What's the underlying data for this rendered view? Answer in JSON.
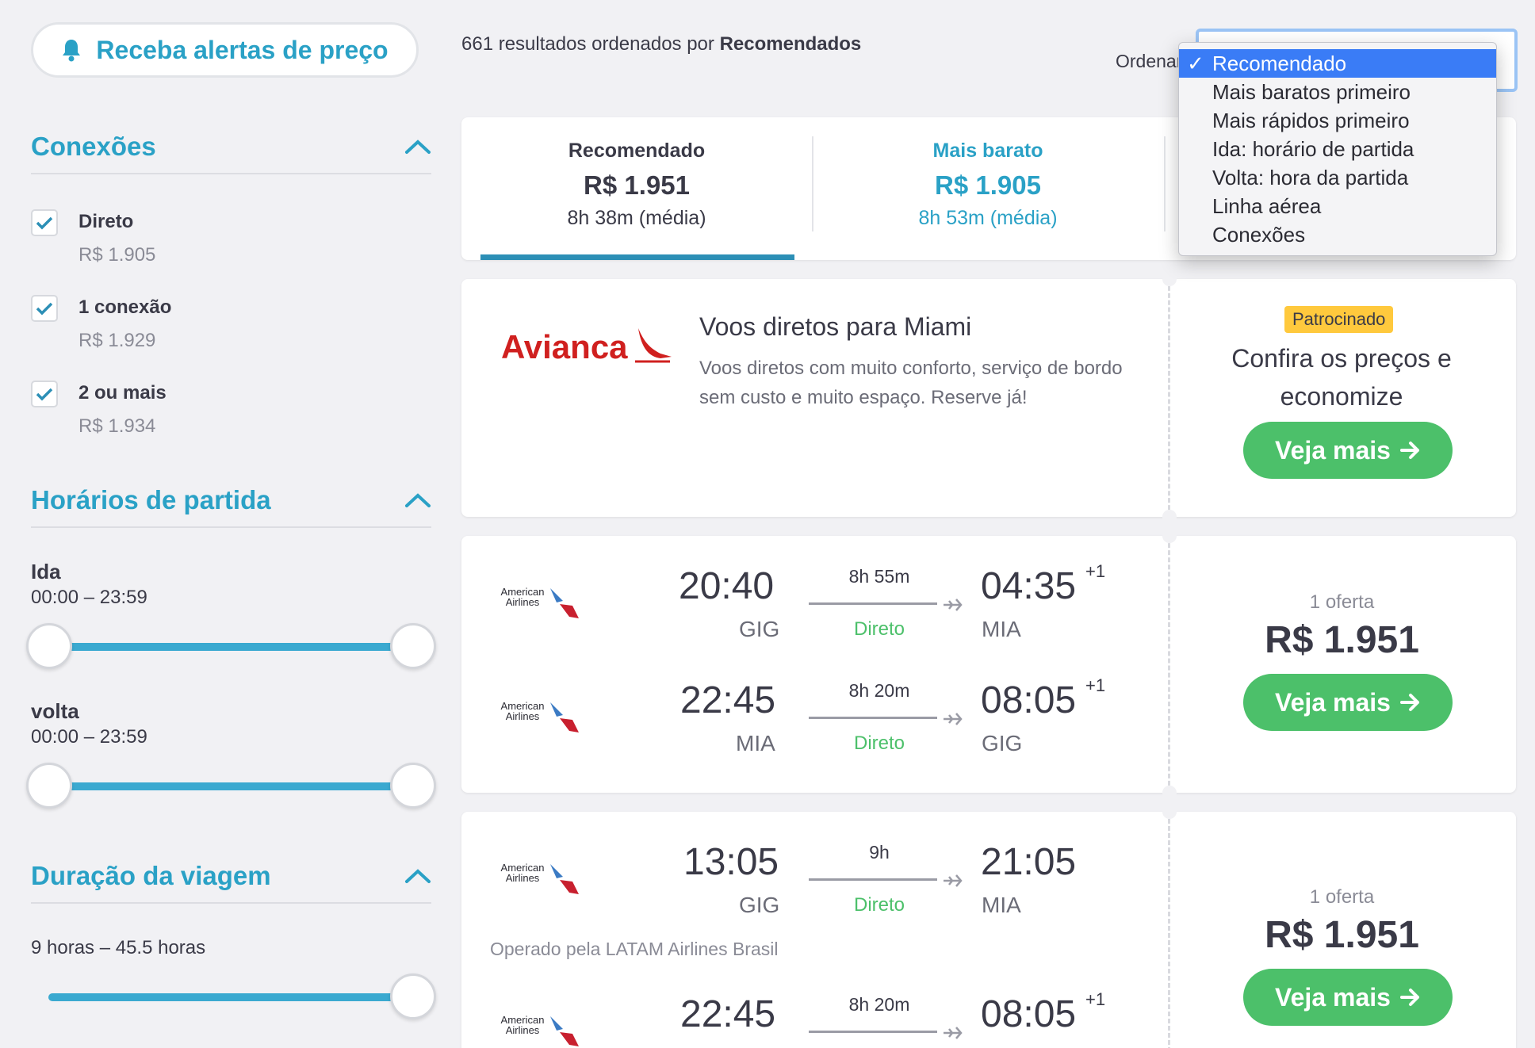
{
  "sidebar": {
    "alert_button": "Receba alertas de preço",
    "connections": {
      "title": "Conexões",
      "options": [
        {
          "label": "Direto",
          "price": "R$ 1.905",
          "checked": true
        },
        {
          "label": "1 conexão",
          "price": "R$ 1.929",
          "checked": true
        },
        {
          "label": "2 ou mais",
          "price": "R$ 1.934",
          "checked": true
        }
      ]
    },
    "departure_times": {
      "title": "Horários de partida",
      "outbound_label": "Ida",
      "outbound_range": "00:00 – 23:59",
      "return_label": "volta",
      "return_range": "00:00 – 23:59"
    },
    "trip_duration": {
      "title": "Duração da viagem",
      "range": "9 horas – 45.5 horas"
    }
  },
  "top": {
    "results_prefix": "661 resultados ordenados por",
    "results_sort": "Recomendados",
    "sort_label": "Ordenar",
    "sort_options": [
      "Recomendado",
      "Mais baratos primeiro",
      "Mais rápidos primeiro",
      "Ida: horário de partida",
      "Volta: hora da partida",
      "Linha aérea",
      "Conexões"
    ],
    "sort_selected": "Recomendado"
  },
  "tabs": [
    {
      "name": "Recomendado",
      "price": "R$ 1.951",
      "duration": "8h 38m (média)"
    },
    {
      "name": "Mais barato",
      "price": "R$ 1.905",
      "duration": "8h 53m (média)"
    }
  ],
  "ad": {
    "brand": "Avianca",
    "title": "Voos diretos para Miami",
    "description": "Voos diretos com muito conforto, serviço de bordo sem custo e muito espaço. Reserve já!",
    "badge": "Patrocinado",
    "cta": "Confira os preços e economize",
    "button": "Veja mais"
  },
  "airline_logo_text": "American Airlines",
  "results": [
    {
      "legs": [
        {
          "dep_time": "20:40",
          "dep_code": "GIG",
          "duration": "8h 55m",
          "stops": "Direto",
          "arr_time": "04:35",
          "arr_plus": "+1",
          "arr_code": "MIA"
        },
        {
          "dep_time": "22:45",
          "dep_code": "MIA",
          "duration": "8h 20m",
          "stops": "Direto",
          "arr_time": "08:05",
          "arr_plus": "+1",
          "arr_code": "GIG"
        }
      ],
      "offers": "1 oferta",
      "price": "R$ 1.951",
      "button": "Veja mais"
    },
    {
      "legs": [
        {
          "dep_time": "13:05",
          "dep_code": "GIG",
          "duration": "9h",
          "stops": "Direto",
          "arr_time": "21:05",
          "arr_plus": "",
          "arr_code": "MIA"
        },
        {
          "dep_time": "22:45",
          "dep_code": "",
          "duration": "8h 20m",
          "stops": "",
          "arr_time": "08:05",
          "arr_plus": "+1",
          "arr_code": ""
        }
      ],
      "operated_by": "Operado pela LATAM Airlines Brasil",
      "offers": "1 oferta",
      "price": "R$ 1.951",
      "button": "Veja mais"
    }
  ],
  "colors": {
    "accent": "#2aa1c6",
    "green": "#4cc06a",
    "badge": "#ffc93d",
    "dropdown_selected": "#3a7cf6",
    "avianca": "#d0201f"
  }
}
